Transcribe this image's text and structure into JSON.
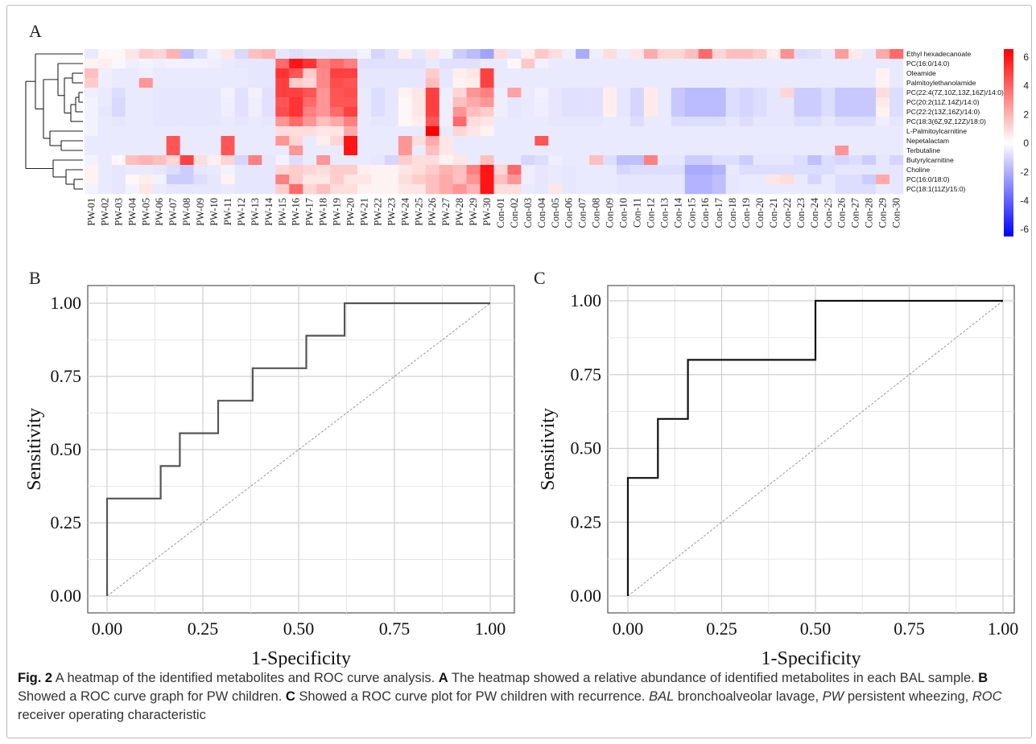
{
  "panels": {
    "a": "A",
    "b": "B",
    "c": "C"
  },
  "heatmap": {
    "columns": [
      "PW-01",
      "PW-02",
      "PW-03",
      "PW-04",
      "PW-05",
      "PW-06",
      "PW-07",
      "PW-08",
      "PW-09",
      "PW-10",
      "PW-11",
      "PW-12",
      "PW-13",
      "PW-14",
      "PW-15",
      "PW-16",
      "PW-17",
      "PW-18",
      "PW-19",
      "PW-20",
      "PW-21",
      "PW-22",
      "PW-23",
      "PW-24",
      "PW-25",
      "PW-26",
      "PW-27",
      "PW-28",
      "PW-29",
      "PW-30",
      "Con-01",
      "Con-02",
      "Con-03",
      "Con-04",
      "Con-05",
      "Con-06",
      "Con-07",
      "Con-08",
      "Con-09",
      "Con-10",
      "Con-11",
      "Con-12",
      "Con-13",
      "Con-14",
      "Con-15",
      "Con-16",
      "Con-17",
      "Con-18",
      "Con-19",
      "Con-20",
      "Con-21",
      "Con-22",
      "Con-23",
      "Con-24",
      "Con-25",
      "Con-26",
      "Con-27",
      "Con-28",
      "Con-29",
      "Con-30"
    ],
    "rows": [
      "Ethyl hexadecanoate",
      "PC(16:0/14:0)",
      "Oleamide",
      "Palmitoylethanolamide",
      "PC(22:4(7Z,10Z,13Z,16Z)/14:0)",
      "PC(20:2(11Z,14Z)/14:0)",
      "PC(22:2(13Z,16Z)/14:0)",
      "PC(18:3(6Z,9Z,12Z)/18:0)",
      "L-Palmitoylcarnitine",
      "Nepetalactam",
      "Terbutaline",
      "Butyrylcarnitine",
      "Choline",
      "PC(16:0/18:0)",
      "PC(18:1(11Z)/15:0)"
    ],
    "scale_ticks": [
      "6",
      "4",
      "2",
      "0",
      "-2",
      "-4",
      "-6"
    ],
    "scale_range": [
      -6,
      6
    ],
    "colors": {
      "low": "#0000ff",
      "mid": "#ffffff",
      "high": "#ff0000"
    },
    "values": [
      [
        -0.5,
        0.2,
        0.2,
        0.6,
        1.2,
        1.0,
        1.8,
        -1.5,
        -0.8,
        -0.3,
        0.6,
        -0.9,
        1.5,
        1.8,
        -0.6,
        -0.8,
        -0.6,
        -0.6,
        -0.6,
        -0.6,
        -0.3,
        -1.0,
        -0.7,
        0.4,
        -0.6,
        0.6,
        -0.3,
        -1.2,
        -1.6,
        -2.2,
        0.8,
        -0.6,
        0.4,
        1.3,
        0.8,
        -0.4,
        -2.0,
        -0.4,
        0.8,
        -0.4,
        0.6,
        2.0,
        1.0,
        1.0,
        1.5,
        3.5,
        1.0,
        1.5,
        1.5,
        1.2,
        0.4,
        2.6,
        -0.8,
        -0.7,
        -0.5,
        2.3,
        0.5,
        -0.5,
        2.0,
        3.5
      ],
      [
        0.3,
        0.4,
        -0.2,
        -0.4,
        -0.3,
        -0.4,
        -0.3,
        -0.3,
        -0.3,
        -0.4,
        -0.5,
        -0.6,
        -0.6,
        -0.6,
        3.5,
        5.5,
        4.8,
        3.0,
        3.5,
        3.0,
        -0.7,
        -0.7,
        -0.7,
        -0.7,
        -0.7,
        -0.5,
        -0.7,
        -0.7,
        -0.7,
        -0.5,
        -0.5,
        0.2,
        1.3,
        -0.3,
        -0.5,
        -0.5,
        -0.5,
        -0.5,
        -0.5,
        -0.5,
        -0.5,
        -0.5,
        -0.5,
        -0.5,
        -0.5,
        -0.5,
        -0.5,
        -0.5,
        -0.5,
        -0.5,
        -0.5,
        -0.5,
        -0.5,
        -0.5,
        -0.5,
        -0.5,
        -0.5,
        -0.5,
        -0.5,
        -0.5
      ],
      [
        1.5,
        -0.4,
        -0.5,
        -0.5,
        -0.4,
        -0.5,
        -0.5,
        -0.5,
        -0.5,
        -0.5,
        -0.5,
        -0.5,
        -0.6,
        -0.6,
        4.8,
        4.0,
        1.2,
        2.8,
        4.5,
        4.5,
        -0.6,
        -0.6,
        -0.6,
        -0.6,
        -0.6,
        1.2,
        -0.6,
        0.4,
        0.6,
        4.5,
        -0.5,
        -0.5,
        -0.5,
        -0.5,
        -0.5,
        -0.5,
        -0.5,
        -0.5,
        -0.5,
        -0.5,
        -0.5,
        -0.5,
        -0.5,
        -0.5,
        -0.5,
        -0.5,
        -0.5,
        -0.5,
        -0.5,
        -0.5,
        -0.5,
        -0.5,
        -0.5,
        -0.5,
        -0.5,
        -0.5,
        -0.5,
        -0.5,
        0.3,
        -0.5
      ],
      [
        1.2,
        -0.4,
        -0.5,
        -0.5,
        2.5,
        -0.5,
        -0.5,
        -0.5,
        -0.5,
        -0.5,
        -0.5,
        -0.5,
        -0.6,
        -0.6,
        4.5,
        1.2,
        1.0,
        2.8,
        4.2,
        4.0,
        -0.6,
        -0.6,
        -0.6,
        -0.6,
        -0.6,
        1.5,
        -0.6,
        0.3,
        0.4,
        4.5,
        -0.5,
        -0.5,
        -0.5,
        -0.5,
        -0.5,
        -0.5,
        -0.5,
        -0.5,
        -0.5,
        -0.5,
        -0.5,
        -0.5,
        -0.5,
        -0.5,
        -0.5,
        -0.5,
        -0.5,
        -0.5,
        -0.5,
        -0.5,
        -0.5,
        -0.5,
        -0.5,
        -0.5,
        -0.5,
        -0.5,
        -0.5,
        -0.5,
        0.3,
        -0.5
      ],
      [
        -0.4,
        -0.5,
        -0.8,
        -0.5,
        -0.5,
        -0.6,
        -0.6,
        -0.6,
        -0.6,
        -0.6,
        -0.3,
        -0.7,
        -0.3,
        -0.7,
        4.5,
        4.5,
        4.0,
        2.5,
        4.0,
        4.2,
        -0.5,
        -0.8,
        -0.6,
        0.3,
        0.6,
        4.5,
        -0.4,
        1.0,
        2.5,
        3.0,
        -0.4,
        2.2,
        -0.5,
        -0.3,
        -0.6,
        -0.7,
        -0.7,
        -0.7,
        0.4,
        -0.6,
        -1.0,
        0.5,
        -0.5,
        -1.3,
        -1.6,
        -1.6,
        -1.6,
        -0.8,
        -1.0,
        -0.8,
        -0.6,
        1.0,
        -1.2,
        -1.2,
        -0.8,
        -1.3,
        -1.3,
        -1.3,
        0.8,
        -0.8
      ],
      [
        -0.3,
        -0.5,
        -0.9,
        -0.5,
        -0.5,
        -0.6,
        -0.6,
        -0.6,
        -0.6,
        -0.6,
        -0.4,
        -0.7,
        -0.4,
        -0.7,
        4.0,
        4.8,
        3.5,
        2.5,
        4.0,
        4.0,
        -0.5,
        -0.8,
        -0.6,
        0.2,
        0.6,
        4.5,
        -0.4,
        1.5,
        2.0,
        2.5,
        -0.4,
        -0.6,
        -0.5,
        -0.4,
        -0.6,
        -0.7,
        -0.7,
        -0.7,
        0.4,
        -0.6,
        -1.0,
        0.5,
        -0.5,
        -1.3,
        -1.6,
        -1.6,
        -1.6,
        -0.8,
        -1.0,
        -0.8,
        -0.6,
        -0.6,
        -1.2,
        -1.2,
        -0.8,
        -1.3,
        -1.3,
        -1.3,
        0.5,
        -0.8
      ],
      [
        -0.3,
        -0.6,
        -0.9,
        -0.5,
        -0.5,
        -0.6,
        -0.6,
        -0.6,
        -0.6,
        -0.6,
        -0.4,
        -0.7,
        -0.4,
        -0.7,
        4.2,
        4.8,
        3.0,
        2.5,
        3.5,
        4.5,
        -0.5,
        -0.8,
        -0.6,
        0.2,
        0.6,
        4.5,
        -0.4,
        2.5,
        1.5,
        1.2,
        -0.4,
        -0.6,
        -0.5,
        -0.4,
        -0.6,
        -0.7,
        -0.7,
        -0.7,
        0.4,
        -0.6,
        -1.0,
        0.5,
        -0.5,
        -1.3,
        -1.6,
        -1.6,
        -1.6,
        -0.8,
        -1.0,
        -0.8,
        -0.6,
        -0.6,
        -1.2,
        -1.2,
        -0.8,
        -1.3,
        -1.3,
        -1.3,
        0.3,
        -0.8
      ],
      [
        -0.3,
        -0.5,
        -0.6,
        -0.5,
        -0.5,
        -0.6,
        -0.6,
        -0.6,
        -0.6,
        -0.6,
        -0.5,
        -0.6,
        -0.5,
        -0.6,
        2.5,
        3.5,
        2.5,
        1.5,
        2.0,
        3.0,
        -0.5,
        -0.6,
        -0.6,
        0.2,
        0.4,
        4.0,
        -0.4,
        3.5,
        0.8,
        0.6,
        -0.5,
        -0.5,
        -0.5,
        -0.5,
        -0.6,
        -0.6,
        -0.6,
        -0.6,
        -0.5,
        -0.5,
        -0.8,
        -0.5,
        -0.5,
        -0.8,
        -0.8,
        -0.8,
        -0.8,
        -0.6,
        -0.8,
        -0.6,
        -0.6,
        -0.6,
        -0.8,
        -0.8,
        -0.6,
        -0.8,
        -0.8,
        -0.8,
        -0.4,
        -0.6
      ],
      [
        -0.3,
        -0.5,
        -0.5,
        -0.5,
        -0.5,
        -0.5,
        -0.5,
        -0.5,
        -0.5,
        -0.5,
        -0.5,
        -0.5,
        -0.5,
        -0.5,
        0.8,
        0.8,
        0.8,
        0.6,
        0.6,
        2.0,
        -0.5,
        -0.5,
        -0.5,
        -0.5,
        -0.5,
        6.0,
        -0.5,
        1.0,
        0.6,
        0.3,
        -0.5,
        -0.5,
        -0.5,
        -0.5,
        -0.5,
        -0.5,
        -0.5,
        -0.5,
        -0.5,
        -0.5,
        -0.5,
        -0.5,
        -0.5,
        -0.5,
        -0.5,
        -0.5,
        -0.5,
        -0.5,
        -0.5,
        -0.5,
        -0.5,
        -0.5,
        -0.5,
        -0.5,
        -0.5,
        -0.5,
        -0.5,
        -0.5,
        -0.5,
        -0.5
      ],
      [
        -0.5,
        -0.5,
        -0.5,
        -0.5,
        -0.5,
        -0.5,
        4.0,
        -0.5,
        -0.5,
        -0.5,
        4.0,
        -0.5,
        -0.5,
        -0.5,
        2.5,
        1.0,
        -0.5,
        0.4,
        1.0,
        5.5,
        -0.5,
        -0.5,
        -0.5,
        2.5,
        0.8,
        2.0,
        0.6,
        -0.5,
        -0.5,
        -0.5,
        -0.5,
        -0.5,
        -0.5,
        4.0,
        -0.5,
        -0.5,
        -0.5,
        -0.5,
        -0.5,
        -0.5,
        -0.5,
        -0.5,
        -0.5,
        -0.5,
        -0.5,
        -0.5,
        -0.5,
        -0.5,
        -0.5,
        -0.5,
        -0.5,
        -0.5,
        -0.5,
        -0.5,
        -0.5,
        -0.5,
        -0.5,
        -0.5,
        -0.5,
        -0.5
      ],
      [
        -0.5,
        -0.5,
        -0.5,
        -0.5,
        -0.5,
        -0.5,
        4.0,
        -0.5,
        -0.5,
        -0.5,
        4.0,
        -0.5,
        -0.5,
        -0.5,
        -0.5,
        2.5,
        -0.5,
        -0.5,
        -0.5,
        5.5,
        -0.5,
        -0.5,
        -0.5,
        2.5,
        -0.5,
        1.5,
        0.6,
        -0.5,
        -0.5,
        -0.5,
        -0.5,
        -0.5,
        -0.5,
        -0.5,
        -0.5,
        -0.5,
        -0.5,
        -0.5,
        -0.5,
        -0.5,
        -0.5,
        -0.5,
        -0.5,
        -0.5,
        -0.5,
        -0.5,
        -0.5,
        -0.5,
        -0.5,
        -0.5,
        -0.5,
        -0.5,
        -0.5,
        -0.5,
        -0.5,
        2.5,
        -0.5,
        -0.5,
        -0.5,
        -0.5
      ],
      [
        -0.3,
        -0.5,
        0.2,
        1.5,
        1.8,
        1.5,
        1.0,
        4.5,
        0.8,
        0.4,
        1.0,
        -1.0,
        3.0,
        -0.6,
        -0.3,
        -0.8,
        -0.5,
        2.5,
        -0.5,
        -0.5,
        -0.5,
        -0.6,
        -1.0,
        1.2,
        0.8,
        0.8,
        0.3,
        0.6,
        -0.5,
        1.5,
        -0.5,
        -0.5,
        -1.0,
        -0.8,
        -0.4,
        -0.5,
        -0.5,
        1.5,
        -0.8,
        -1.5,
        -1.5,
        3.0,
        -0.6,
        -0.6,
        -1.2,
        -1.2,
        -0.8,
        -0.8,
        -1.2,
        -0.6,
        -0.6,
        -0.6,
        -0.8,
        -1.5,
        -0.8,
        -1.0,
        -0.8,
        -1.2,
        -0.6,
        -1.0
      ],
      [
        0.3,
        -0.5,
        -0.6,
        -0.5,
        -0.5,
        -0.6,
        -0.8,
        -1.2,
        -0.6,
        -0.5,
        -0.3,
        -0.6,
        -0.6,
        -0.6,
        1.0,
        1.2,
        1.0,
        0.8,
        1.2,
        1.2,
        0.4,
        0.3,
        0.3,
        0.6,
        0.8,
        1.2,
        1.8,
        1.5,
        3.0,
        5.5,
        1.0,
        3.5,
        -0.4,
        -0.6,
        -0.5,
        -0.6,
        -0.5,
        -0.5,
        -0.5,
        -1.0,
        -0.8,
        -0.8,
        -0.8,
        -0.8,
        -2.0,
        -2.0,
        -1.8,
        -0.5,
        -0.8,
        -0.8,
        -0.8,
        -0.8,
        -0.8,
        -0.8,
        -0.8,
        -0.6,
        -0.6,
        -0.6,
        -0.6,
        -0.6
      ],
      [
        0.3,
        -0.5,
        -0.6,
        0.2,
        0.4,
        -0.3,
        -1.2,
        -1.2,
        -0.8,
        -0.6,
        0.3,
        -0.6,
        -0.6,
        -0.6,
        3.0,
        1.2,
        0.6,
        0.6,
        1.2,
        0.6,
        0.6,
        0.3,
        0.3,
        0.8,
        1.2,
        1.5,
        2.0,
        1.5,
        2.5,
        5.5,
        1.5,
        2.5,
        -0.4,
        -0.6,
        -0.5,
        -0.6,
        -0.5,
        -0.5,
        -0.5,
        -0.6,
        -0.6,
        -0.6,
        -0.6,
        -0.6,
        -1.8,
        -1.8,
        -1.5,
        -0.6,
        -0.5,
        -0.5,
        0.6,
        0.8,
        -0.5,
        -1.0,
        -0.5,
        -0.8,
        -0.8,
        -1.2,
        2.0,
        -0.6
      ],
      [
        -0.3,
        -0.5,
        -0.6,
        -0.3,
        0.6,
        -0.5,
        -0.6,
        -0.6,
        -0.6,
        -0.6,
        -0.5,
        -0.6,
        -0.6,
        -0.6,
        1.2,
        3.5,
        1.0,
        1.5,
        0.8,
        0.8,
        0.3,
        0.3,
        0.3,
        0.6,
        0.6,
        1.5,
        2.0,
        2.5,
        1.8,
        5.5,
        0.8,
        0.8,
        -0.5,
        -0.6,
        0.6,
        -0.6,
        -0.5,
        -0.5,
        -0.5,
        -0.6,
        -0.6,
        -0.6,
        -0.6,
        -0.6,
        -1.8,
        -1.8,
        -1.5,
        -0.6,
        -0.5,
        -0.5,
        -0.5,
        -0.5,
        -0.5,
        -0.5,
        -0.5,
        -0.8,
        -0.8,
        -0.8,
        -0.5,
        -0.6
      ]
    ]
  },
  "roc_b": {
    "xlabel": "1-Specificity",
    "ylabel": "Sensitivity",
    "ticks": [
      "0.00",
      "0.25",
      "0.50",
      "0.75",
      "1.00"
    ]
  },
  "roc_c": {
    "xlabel": "1-Specificity",
    "ylabel": "Sensitivity",
    "ticks": [
      "0.00",
      "0.25",
      "0.50",
      "0.75",
      "1.00"
    ]
  },
  "chart_data": [
    {
      "type": "heatmap",
      "title": "",
      "x": [
        "PW-01",
        "…",
        "Con-30"
      ],
      "y_ref": "heatmap.rows",
      "values_ref": "heatmap.values",
      "colorbar": {
        "min": -6,
        "max": 6,
        "ticks": [
          6,
          4,
          2,
          0,
          -2,
          -4,
          -6
        ]
      },
      "dendrogram": "rows"
    },
    {
      "type": "line",
      "title": "",
      "xlabel": "1-Specificity",
      "ylabel": "Sensitivity",
      "xlim": [
        0,
        1
      ],
      "ylim": [
        0,
        1
      ],
      "grid": true,
      "series": [
        {
          "x": [
            0,
            0,
            0.14,
            0.14,
            0.19,
            0.19,
            0.29,
            0.29,
            0.38,
            0.38,
            0.52,
            0.52,
            0.62,
            0.62,
            1.0
          ],
          "y": [
            0,
            0.333,
            0.333,
            0.444,
            0.444,
            0.556,
            0.556,
            0.667,
            0.667,
            0.778,
            0.778,
            0.889,
            0.889,
            1.0,
            1.0
          ]
        },
        {
          "x": [
            0,
            1
          ],
          "y": [
            0,
            1
          ]
        }
      ]
    },
    {
      "type": "line",
      "title": "",
      "xlabel": "1-Specificity",
      "ylabel": "Sensitivity",
      "xlim": [
        0,
        1
      ],
      "ylim": [
        0,
        1
      ],
      "grid": true,
      "series": [
        {
          "x": [
            0,
            0,
            0.08,
            0.08,
            0.16,
            0.16,
            0.5,
            0.5,
            1.0
          ],
          "y": [
            0,
            0.4,
            0.4,
            0.6,
            0.6,
            0.8,
            0.8,
            1.0,
            1.0
          ]
        },
        {
          "x": [
            0,
            1
          ],
          "y": [
            0,
            1
          ]
        }
      ]
    }
  ],
  "caption": {
    "fig_label": "Fig. 2",
    "intro": "  A heatmap of the identified metabolites and ROC curve analysis. ",
    "a_label": "A",
    "a_text": " The heatmap showed a relative abundance of identified metabolites in each BAL sample. ",
    "b_label": "B",
    "b_text": " Showed a ROC curve graph for PW children. ",
    "c_label": "C",
    "c_text": " Showed a ROC curve plot for PW children with recurrence. ",
    "abbr1": "BAL",
    "abbr1_text": " bronchoalveolar lavage, ",
    "abbr2": "PW",
    "abbr2_text": " persistent wheezing, ",
    "abbr3": "ROC",
    "abbr3_text": " receiver operating characteristic"
  }
}
